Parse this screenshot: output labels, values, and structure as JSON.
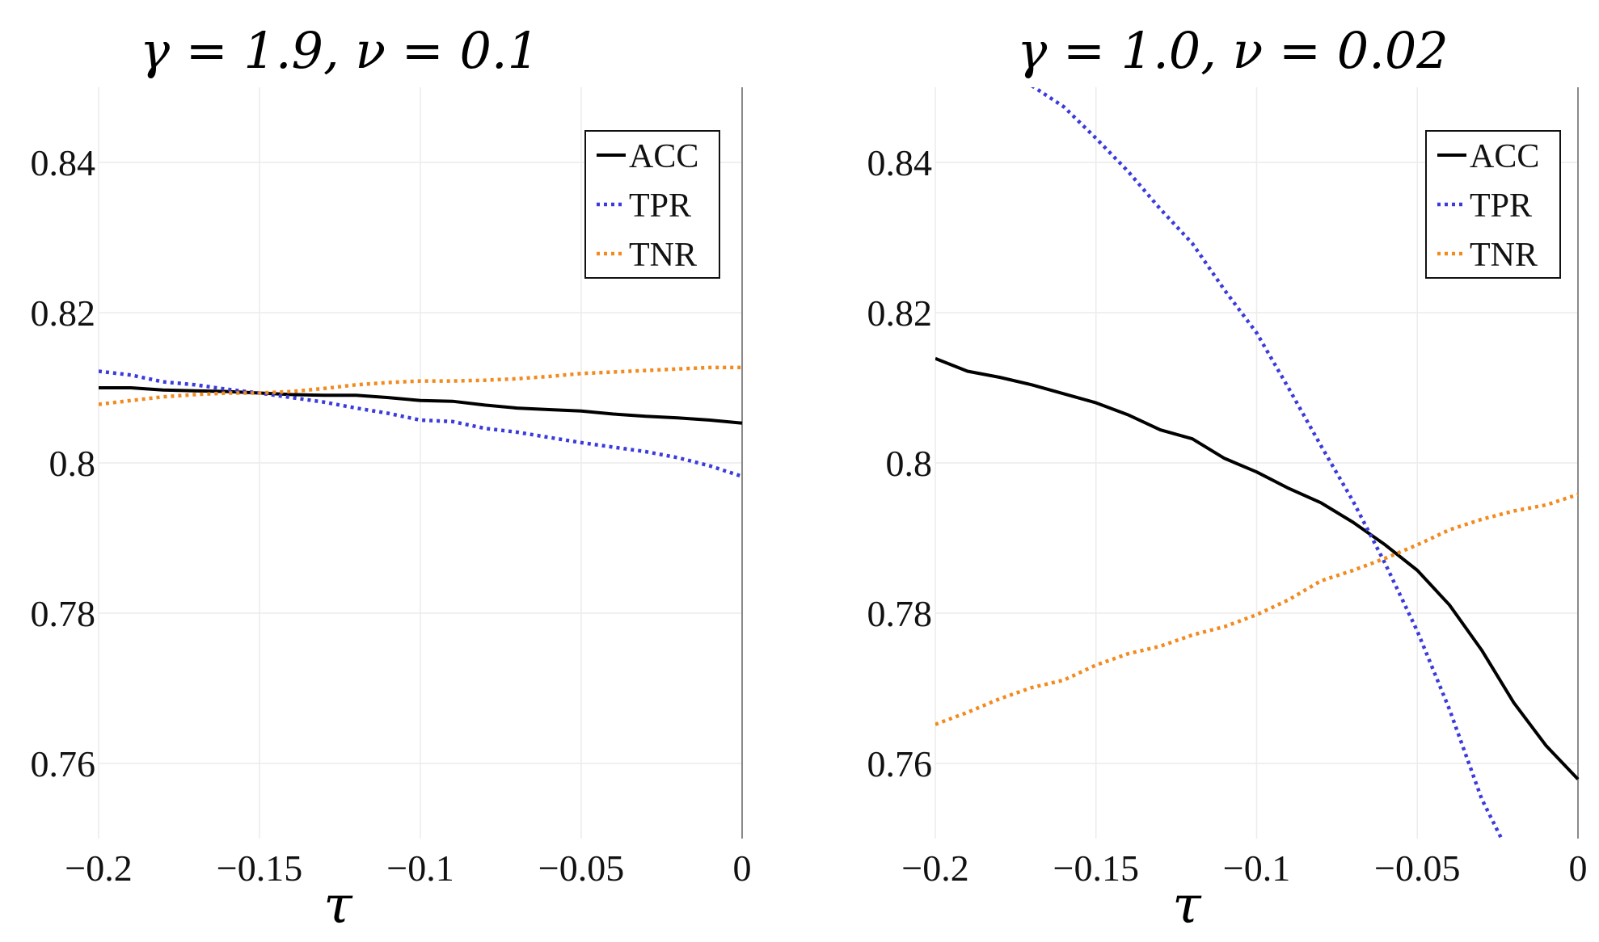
{
  "chart_data": [
    {
      "type": "line",
      "title": "γ = 1.9, ν = 0.1",
      "xlabel": "τ",
      "ylabel": "",
      "xlim": [
        -0.2,
        0
      ],
      "ylim": [
        0.75,
        0.85
      ],
      "xticks": [
        -0.2,
        -0.15,
        -0.1,
        -0.05,
        0
      ],
      "xtick_labels": [
        "−0.2",
        "−0.15",
        "−0.1",
        "−0.05",
        "0"
      ],
      "yticks": [
        0.76,
        0.78,
        0.8,
        0.82,
        0.84
      ],
      "ytick_labels": [
        "0.76",
        "0.78",
        "0.8",
        "0.82",
        "0.84"
      ],
      "legend_position": "top-right",
      "series": [
        {
          "name": "ACC",
          "style": "solid",
          "color": "#000000",
          "x": [
            -0.2,
            -0.19,
            -0.18,
            -0.17,
            -0.16,
            -0.15,
            -0.14,
            -0.13,
            -0.12,
            -0.11,
            -0.1,
            -0.09,
            -0.08,
            -0.07,
            -0.06,
            -0.05,
            -0.04,
            -0.03,
            -0.02,
            -0.01,
            0
          ],
          "y": [
            0.81,
            0.81,
            0.8097,
            0.8096,
            0.8095,
            0.8093,
            0.8091,
            0.809,
            0.809,
            0.8087,
            0.8083,
            0.8082,
            0.8077,
            0.8073,
            0.8071,
            0.8069,
            0.8065,
            0.8062,
            0.806,
            0.8057,
            0.8053
          ]
        },
        {
          "name": "TPR",
          "style": "dotted",
          "color": "#3b3bdd",
          "x": [
            -0.2,
            -0.19,
            -0.18,
            -0.17,
            -0.16,
            -0.15,
            -0.14,
            -0.13,
            -0.12,
            -0.11,
            -0.1,
            -0.09,
            -0.08,
            -0.07,
            -0.06,
            -0.05,
            -0.04,
            -0.03,
            -0.02,
            -0.01,
            0
          ],
          "y": [
            0.8122,
            0.8117,
            0.8108,
            0.8104,
            0.8098,
            0.8093,
            0.8087,
            0.8081,
            0.8073,
            0.8066,
            0.8057,
            0.8055,
            0.8046,
            0.8041,
            0.8034,
            0.8027,
            0.8021,
            0.8015,
            0.8007,
            0.7996,
            0.7982
          ]
        },
        {
          "name": "TNR",
          "style": "dotted",
          "color": "#f28a1e",
          "x": [
            -0.2,
            -0.19,
            -0.18,
            -0.17,
            -0.16,
            -0.15,
            -0.14,
            -0.13,
            -0.12,
            -0.11,
            -0.1,
            -0.09,
            -0.08,
            -0.07,
            -0.06,
            -0.05,
            -0.04,
            -0.03,
            -0.02,
            -0.01,
            0
          ],
          "y": [
            0.8078,
            0.8083,
            0.8088,
            0.8091,
            0.8093,
            0.8093,
            0.8095,
            0.8099,
            0.8104,
            0.8107,
            0.8109,
            0.8109,
            0.811,
            0.8112,
            0.8115,
            0.8119,
            0.8121,
            0.8123,
            0.8125,
            0.8127,
            0.8127
          ]
        }
      ]
    },
    {
      "type": "line",
      "title": "γ = 1.0, ν = 0.02",
      "xlabel": "τ",
      "ylabel": "",
      "xlim": [
        -0.2,
        0
      ],
      "ylim": [
        0.75,
        0.85
      ],
      "xticks": [
        -0.2,
        -0.15,
        -0.1,
        -0.05,
        0
      ],
      "xtick_labels": [
        "−0.2",
        "−0.15",
        "−0.1",
        "−0.05",
        "0"
      ],
      "yticks": [
        0.76,
        0.78,
        0.8,
        0.82,
        0.84
      ],
      "ytick_labels": [
        "0.76",
        "0.78",
        "0.8",
        "0.82",
        "0.84"
      ],
      "legend_position": "top-right",
      "series": [
        {
          "name": "ACC",
          "style": "solid",
          "color": "#000000",
          "x": [
            -0.2,
            -0.19,
            -0.18,
            -0.17,
            -0.16,
            -0.15,
            -0.14,
            -0.13,
            -0.12,
            -0.11,
            -0.1,
            -0.09,
            -0.08,
            -0.07,
            -0.06,
            -0.05,
            -0.04,
            -0.03,
            -0.02,
            -0.01,
            0
          ],
          "y": [
            0.8139,
            0.8122,
            0.8114,
            0.8104,
            0.8092,
            0.808,
            0.8064,
            0.8044,
            0.8032,
            0.8006,
            0.7988,
            0.7966,
            0.7947,
            0.7921,
            0.7891,
            0.7857,
            0.7811,
            0.7751,
            0.7681,
            0.7624,
            0.7579
          ]
        },
        {
          "name": "TPR",
          "style": "dotted",
          "color": "#3b3bdd",
          "x": [
            -0.17,
            -0.16,
            -0.15,
            -0.14,
            -0.13,
            -0.12,
            -0.11,
            -0.1,
            -0.09,
            -0.08,
            -0.07,
            -0.06,
            -0.05,
            -0.04,
            -0.03,
            -0.023
          ],
          "y": [
            0.8502,
            0.8474,
            0.8432,
            0.8388,
            0.8338,
            0.8292,
            0.823,
            0.8173,
            0.8099,
            0.8023,
            0.7949,
            0.7866,
            0.7776,
            0.7672,
            0.7553,
            0.7493
          ]
        },
        {
          "name": "TNR",
          "style": "dotted",
          "color": "#f28a1e",
          "x": [
            -0.2,
            -0.19,
            -0.18,
            -0.17,
            -0.16,
            -0.15,
            -0.14,
            -0.13,
            -0.12,
            -0.11,
            -0.1,
            -0.09,
            -0.08,
            -0.07,
            -0.06,
            -0.05,
            -0.04,
            -0.03,
            -0.02,
            -0.01,
            0
          ],
          "y": [
            0.7652,
            0.7668,
            0.7686,
            0.7701,
            0.7711,
            0.7731,
            0.7746,
            0.7756,
            0.7771,
            0.7782,
            0.7798,
            0.7818,
            0.7843,
            0.7857,
            0.7873,
            0.7891,
            0.7911,
            0.7925,
            0.7936,
            0.7944,
            0.7958
          ]
        }
      ]
    }
  ]
}
